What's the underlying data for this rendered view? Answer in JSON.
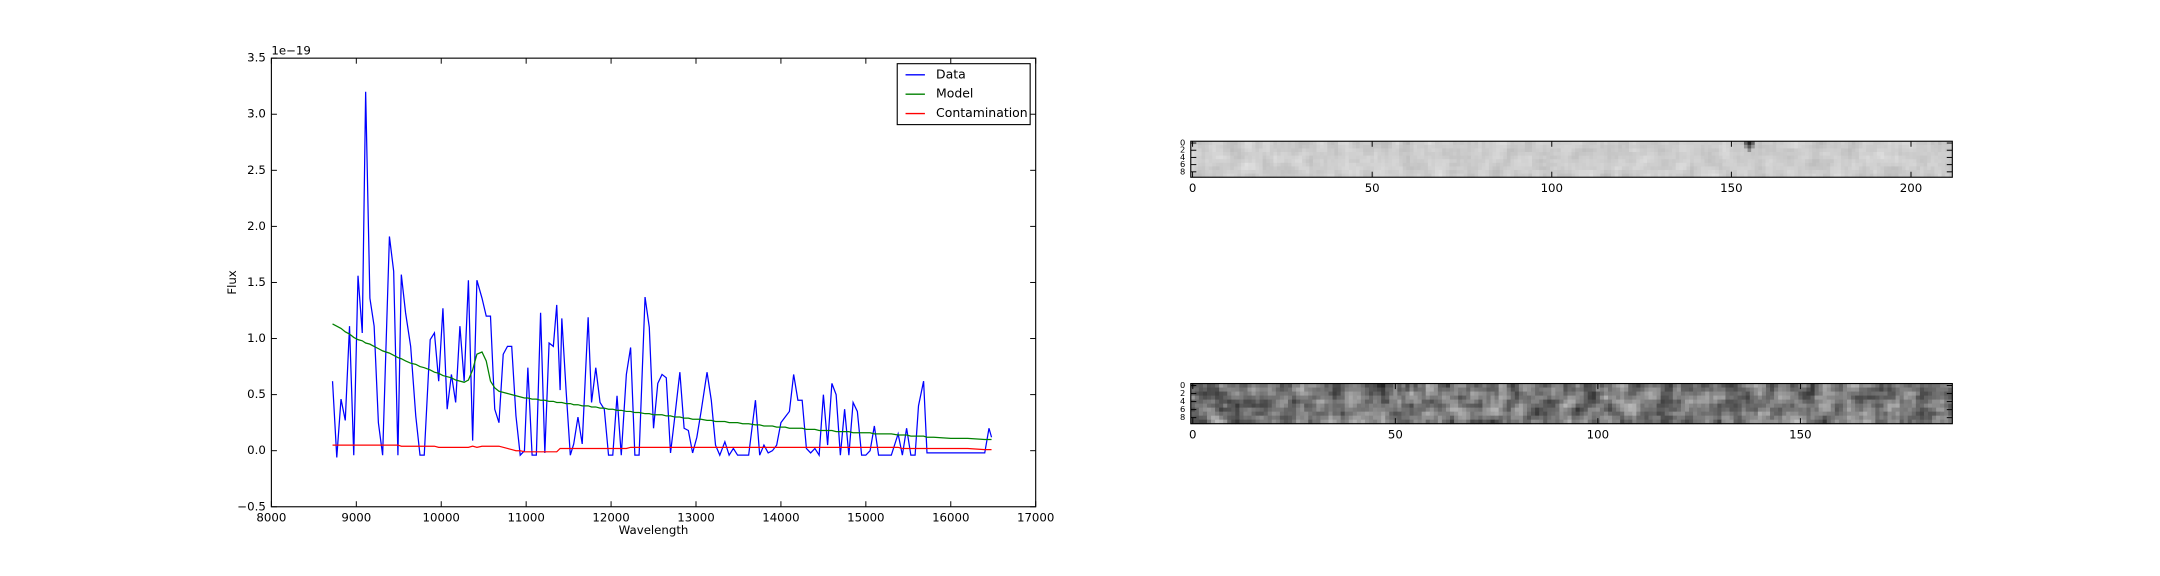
{
  "chart_data": [
    {
      "type": "line",
      "x_label": "Wavelength",
      "y_label": "Flux",
      "offset_text": "1e−19",
      "legend": "upper right",
      "xlim": [
        8000,
        17000
      ],
      "xticks": [
        8000,
        9000,
        10000,
        11000,
        12000,
        13000,
        14000,
        15000,
        16000,
        17000
      ],
      "ylim": [
        -0.5,
        3.5
      ],
      "yticks": [
        {
          "value": -0.5,
          "label": "−0.5"
        },
        {
          "value": 0,
          "label": "0.0"
        },
        0.5,
        {
          "value": 1,
          "label": "1.0"
        },
        1.5,
        {
          "value": 2,
          "label": "2.0"
        },
        2.5,
        {
          "value": 3,
          "label": "3.0"
        },
        3.5
      ],
      "x": [
        8720,
        8770,
        8820,
        8870,
        8920,
        8970,
        9020,
        9070,
        9110,
        9160,
        9210,
        9260,
        9310,
        9390,
        9440,
        9490,
        9530,
        9580,
        9640,
        9700,
        9750,
        9800,
        9870,
        9920,
        9970,
        10020,
        10070,
        10120,
        10170,
        10220,
        10270,
        10320,
        10370,
        10420,
        10480,
        10530,
        10580,
        10630,
        10680,
        10730,
        10780,
        10830,
        10880,
        10930,
        10980,
        11020,
        11070,
        11120,
        11170,
        11220,
        11270,
        11320,
        11360,
        11400,
        11420,
        11470,
        11520,
        11560,
        11610,
        11660,
        11730,
        11770,
        11820,
        11870,
        11920,
        11970,
        12020,
        12070,
        12120,
        12180,
        12230,
        12280,
        12330,
        12400,
        12450,
        12500,
        12550,
        12600,
        12650,
        12700,
        12750,
        12810,
        12860,
        12910,
        12960,
        13010,
        13060,
        13130,
        13180,
        13230,
        13280,
        13340,
        13390,
        13440,
        13490,
        13550,
        13620,
        13700,
        13750,
        13800,
        13850,
        13900,
        13950,
        14000,
        14050,
        14100,
        14150,
        14200,
        14250,
        14300,
        14350,
        14400,
        14450,
        14500,
        14550,
        14600,
        14650,
        14700,
        14750,
        14800,
        14850,
        14900,
        14950,
        15000,
        15050,
        15100,
        15150,
        15200,
        15300,
        15380,
        15430,
        15480,
        15530,
        15580,
        15620,
        15680,
        15720,
        15800,
        16000,
        16200,
        16400,
        16450,
        16480
      ],
      "series": [
        {
          "name": "Data",
          "color": "#0000ff",
          "values": [
            0.62,
            -0.06,
            0.46,
            0.27,
            1.11,
            -0.04,
            1.56,
            1.05,
            3.2,
            1.36,
            1.11,
            0.25,
            -0.04,
            1.91,
            1.6,
            -0.04,
            1.57,
            1.23,
            0.93,
            0.31,
            -0.04,
            -0.04,
            0.99,
            1.05,
            0.62,
            1.27,
            0.37,
            0.68,
            0.43,
            1.11,
            0.62,
            1.52,
            0.09,
            1.52,
            1.36,
            1.2,
            1.2,
            0.37,
            0.25,
            0.86,
            0.93,
            0.93,
            0.31,
            -0.04,
            0.0,
            0.74,
            -0.04,
            -0.04,
            1.23,
            -0.02,
            0.96,
            0.93,
            1.3,
            0.54,
            1.18,
            0.54,
            -0.04,
            0.06,
            0.3,
            0.06,
            1.19,
            0.43,
            0.74,
            0.43,
            0.37,
            -0.04,
            -0.04,
            0.49,
            -0.04,
            0.68,
            0.92,
            -0.04,
            -0.04,
            1.37,
            1.1,
            0.2,
            0.6,
            0.68,
            0.65,
            -0.02,
            0.3,
            0.7,
            0.2,
            0.18,
            -0.02,
            0.12,
            0.35,
            0.7,
            0.45,
            0.05,
            -0.04,
            0.08,
            -0.04,
            0.02,
            -0.04,
            -0.04,
            -0.04,
            0.45,
            -0.04,
            0.05,
            -0.02,
            0.0,
            0.05,
            0.25,
            0.3,
            0.35,
            0.68,
            0.45,
            0.45,
            0.02,
            -0.02,
            0.02,
            -0.04,
            0.5,
            0.05,
            0.6,
            0.5,
            -0.04,
            0.37,
            -0.04,
            0.43,
            0.35,
            -0.04,
            -0.04,
            0.0,
            0.22,
            -0.04,
            -0.04,
            -0.04,
            0.15,
            -0.04,
            0.2,
            -0.04,
            -0.04,
            0.4,
            0.62,
            -0.02,
            -0.02,
            -0.02,
            -0.02,
            -0.02,
            0.2,
            0.12
          ]
        },
        {
          "name": "Model",
          "color": "#008000",
          "values": [
            1.13,
            1.11,
            1.09,
            1.06,
            1.04,
            1.01,
            0.99,
            0.98,
            0.96,
            0.95,
            0.93,
            0.91,
            0.89,
            0.87,
            0.85,
            0.83,
            0.82,
            0.8,
            0.78,
            0.77,
            0.75,
            0.74,
            0.72,
            0.7,
            0.69,
            0.67,
            0.66,
            0.65,
            0.63,
            0.62,
            0.61,
            0.63,
            0.72,
            0.86,
            0.88,
            0.8,
            0.62,
            0.56,
            0.53,
            0.52,
            0.51,
            0.5,
            0.49,
            0.48,
            0.47,
            0.47,
            0.46,
            0.46,
            0.45,
            0.45,
            0.44,
            0.44,
            0.43,
            0.43,
            0.43,
            0.42,
            0.42,
            0.41,
            0.41,
            0.4,
            0.4,
            0.39,
            0.39,
            0.38,
            0.38,
            0.37,
            0.37,
            0.36,
            0.36,
            0.35,
            0.35,
            0.34,
            0.34,
            0.33,
            0.33,
            0.32,
            0.32,
            0.32,
            0.31,
            0.31,
            0.3,
            0.3,
            0.29,
            0.29,
            0.28,
            0.28,
            0.28,
            0.27,
            0.27,
            0.26,
            0.26,
            0.26,
            0.25,
            0.25,
            0.25,
            0.24,
            0.24,
            0.23,
            0.23,
            0.22,
            0.22,
            0.22,
            0.21,
            0.21,
            0.21,
            0.2,
            0.2,
            0.2,
            0.2,
            0.19,
            0.19,
            0.19,
            0.18,
            0.18,
            0.18,
            0.18,
            0.17,
            0.17,
            0.17,
            0.17,
            0.16,
            0.16,
            0.16,
            0.16,
            0.16,
            0.15,
            0.15,
            0.15,
            0.15,
            0.14,
            0.14,
            0.14,
            0.13,
            0.13,
            0.13,
            0.13,
            0.12,
            0.12,
            0.11,
            0.11,
            0.1,
            0.1,
            0.1
          ]
        },
        {
          "name": "Contamination",
          "color": "#ff0000",
          "values": [
            0.05,
            0.05,
            0.05,
            0.05,
            0.05,
            0.05,
            0.05,
            0.05,
            0.05,
            0.05,
            0.05,
            0.05,
            0.05,
            0.05,
            0.05,
            0.05,
            0.04,
            0.04,
            0.04,
            0.04,
            0.04,
            0.04,
            0.04,
            0.04,
            0.03,
            0.03,
            0.03,
            0.03,
            0.03,
            0.03,
            0.03,
            0.03,
            0.04,
            0.03,
            0.04,
            0.04,
            0.04,
            0.04,
            0.04,
            0.03,
            0.02,
            0.01,
            0.0,
            0.0,
            -0.01,
            -0.01,
            -0.01,
            -0.01,
            -0.01,
            -0.01,
            -0.01,
            -0.01,
            -0.01,
            0.02,
            0.02,
            0.02,
            0.02,
            0.02,
            0.02,
            0.02,
            0.02,
            0.02,
            0.02,
            0.02,
            0.02,
            0.02,
            0.02,
            0.02,
            0.02,
            0.02,
            0.03,
            0.03,
            0.03,
            0.03,
            0.03,
            0.03,
            0.03,
            0.03,
            0.03,
            0.03,
            0.03,
            0.03,
            0.03,
            0.03,
            0.03,
            0.03,
            0.03,
            0.03,
            0.03,
            0.03,
            0.03,
            0.03,
            0.03,
            0.03,
            0.03,
            0.03,
            0.03,
            0.03,
            0.03,
            0.03,
            0.03,
            0.03,
            0.03,
            0.03,
            0.03,
            0.03,
            0.03,
            0.03,
            0.03,
            0.03,
            0.03,
            0.03,
            0.03,
            0.03,
            0.03,
            0.03,
            0.03,
            0.03,
            0.03,
            0.03,
            0.03,
            0.03,
            0.03,
            0.03,
            0.03,
            0.03,
            0.03,
            0.03,
            0.03,
            0.03,
            0.02,
            0.02,
            0.02,
            0.02,
            0.02,
            0.02,
            0.02,
            0.02,
            0.02,
            0.02,
            0.01,
            0.01,
            0.01
          ]
        }
      ]
    },
    {
      "type": "image",
      "xlim": [
        -0.5,
        211.5
      ],
      "xticks": [
        0,
        50,
        100,
        150,
        200
      ],
      "ylim": [
        -0.5,
        9.5
      ],
      "yticks": [
        0,
        2,
        4,
        6,
        8
      ]
    },
    {
      "type": "image",
      "xlim": [
        -0.5,
        187.5
      ],
      "xticks": [
        0,
        50,
        100,
        150
      ],
      "ylim": [
        -0.5,
        9.5
      ],
      "yticks": [
        0,
        2,
        4,
        6,
        8
      ]
    }
  ]
}
